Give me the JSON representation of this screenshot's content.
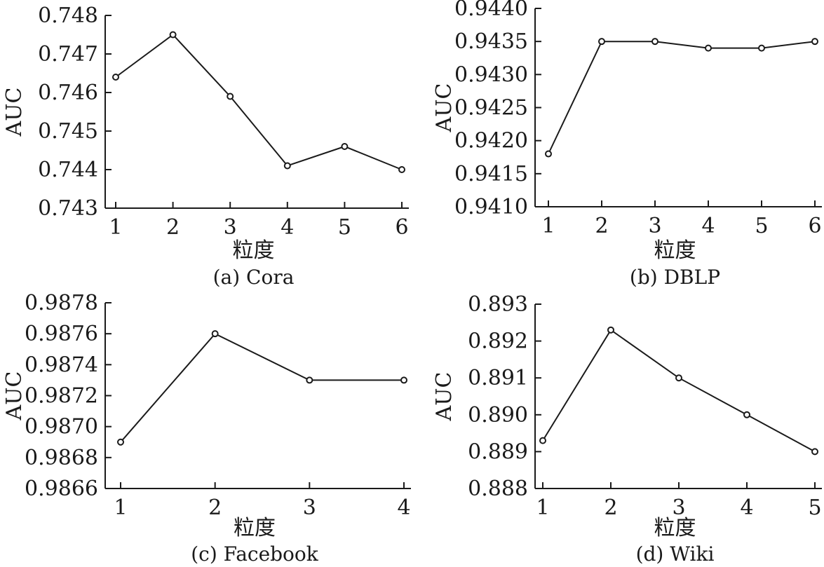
{
  "chart_data": [
    {
      "type": "line",
      "caption": "(a) Cora",
      "xlabel": "粒度",
      "ylabel": "AUC",
      "x": [
        1,
        2,
        3,
        4,
        5,
        6
      ],
      "xticks": [
        "1",
        "2",
        "3",
        "4",
        "5",
        "6"
      ],
      "yticks": [
        "0.743",
        "0.744",
        "0.745",
        "0.746",
        "0.747",
        "0.748"
      ],
      "ylim": [
        0.743,
        0.748
      ],
      "series": [
        {
          "values": [
            0.7464,
            0.7475,
            0.7459,
            0.7441,
            0.7446,
            0.744
          ]
        }
      ]
    },
    {
      "type": "line",
      "caption": "(b) DBLP",
      "xlabel": "粒度",
      "ylabel": "AUC",
      "x": [
        1,
        2,
        3,
        4,
        5,
        6
      ],
      "xticks": [
        "1",
        "2",
        "3",
        "4",
        "5",
        "6"
      ],
      "yticks": [
        "0.9410",
        "0.9415",
        "0.9420",
        "0.9425",
        "0.9430",
        "0.9435",
        "0.9440"
      ],
      "ylim": [
        0.941,
        0.944
      ],
      "series": [
        {
          "values": [
            0.9418,
            0.9435,
            0.9435,
            0.9434,
            0.9434,
            0.9435
          ]
        }
      ]
    },
    {
      "type": "line",
      "caption": "(c) Facebook",
      "xlabel": "粒度",
      "ylabel": "AUC",
      "x": [
        1,
        2,
        3,
        4
      ],
      "xticks": [
        "1",
        "2",
        "3",
        "4"
      ],
      "yticks": [
        "0.9866",
        "0.9868",
        "0.9870",
        "0.9872",
        "0.9874",
        "0.9876",
        "0.9878"
      ],
      "ylim": [
        0.9866,
        0.9878
      ],
      "series": [
        {
          "values": [
            0.9869,
            0.9876,
            0.9873,
            0.9873
          ]
        }
      ]
    },
    {
      "type": "line",
      "caption": "(d) Wiki",
      "xlabel": "粒度",
      "ylabel": "AUC",
      "x": [
        1,
        2,
        3,
        4,
        5
      ],
      "xticks": [
        "1",
        "2",
        "3",
        "4",
        "5"
      ],
      "yticks": [
        "0.888",
        "0.889",
        "0.890",
        "0.891",
        "0.892",
        "0.893"
      ],
      "ylim": [
        0.888,
        0.893
      ],
      "series": [
        {
          "values": [
            0.8893,
            0.8923,
            0.891,
            0.89,
            0.889
          ]
        }
      ]
    }
  ]
}
